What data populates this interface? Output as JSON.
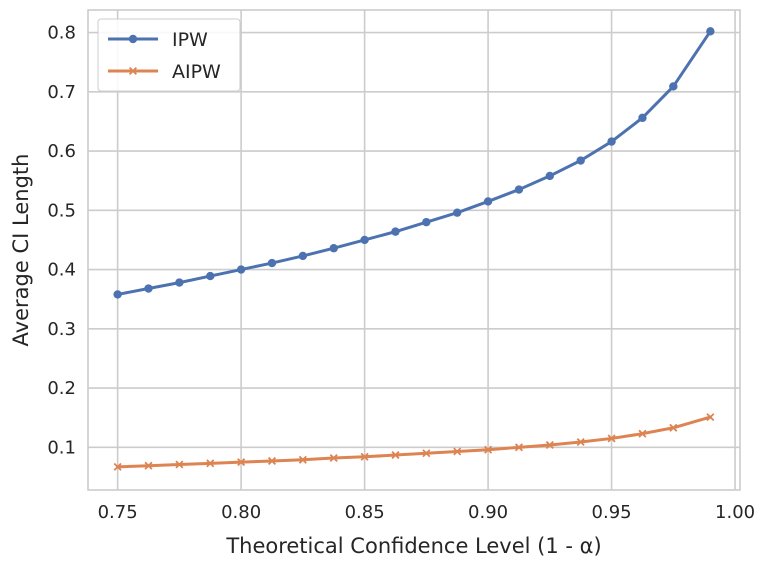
{
  "chart_data": {
    "type": "line",
    "xlabel": "Theoretical Confidence Level (1 - α)",
    "ylabel": "Average CI Length",
    "xlim": [
      0.738,
      1.002
    ],
    "ylim": [
      0.028,
      0.838
    ],
    "xticks": [
      0.75,
      0.8,
      0.85,
      0.9,
      0.95,
      1.0
    ],
    "xtick_labels": [
      "0.75",
      "0.80",
      "0.85",
      "0.90",
      "0.95",
      "1.00"
    ],
    "yticks": [
      0.1,
      0.2,
      0.3,
      0.4,
      0.5,
      0.6,
      0.7,
      0.8
    ],
    "ytick_labels": [
      "0.1",
      "0.2",
      "0.3",
      "0.4",
      "0.5",
      "0.6",
      "0.7",
      "0.8"
    ],
    "grid": true,
    "legend_position": "top-left",
    "x": [
      0.75,
      0.7625,
      0.775,
      0.7875,
      0.8,
      0.8125,
      0.825,
      0.8375,
      0.85,
      0.8625,
      0.875,
      0.8875,
      0.9,
      0.9125,
      0.925,
      0.9375,
      0.95,
      0.9625,
      0.975,
      0.99
    ],
    "series": [
      {
        "name": "IPW",
        "color": "#4c72b0",
        "marker": "circle",
        "values": [
          0.358,
          0.368,
          0.378,
          0.389,
          0.4,
          0.411,
          0.423,
          0.436,
          0.45,
          0.464,
          0.48,
          0.496,
          0.515,
          0.535,
          0.558,
          0.584,
          0.616,
          0.656,
          0.709,
          0.802
        ]
      },
      {
        "name": "AIPW",
        "color": "#dd8452",
        "marker": "x",
        "values": [
          0.067,
          0.069,
          0.071,
          0.073,
          0.075,
          0.077,
          0.079,
          0.082,
          0.084,
          0.087,
          0.09,
          0.093,
          0.096,
          0.1,
          0.104,
          0.109,
          0.115,
          0.123,
          0.133,
          0.151
        ]
      }
    ]
  }
}
